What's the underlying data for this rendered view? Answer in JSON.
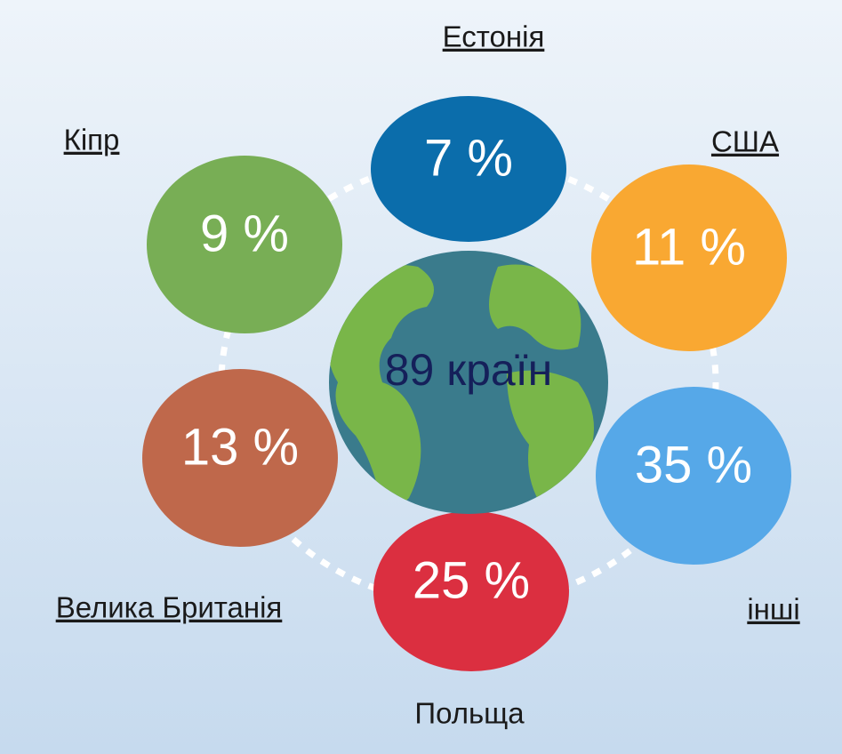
{
  "center": {
    "label": "89 країн"
  },
  "nodes": [
    {
      "label": "Естонія",
      "value": "7 %",
      "color": "#0b6dab"
    },
    {
      "label": "США",
      "value": "11 %",
      "color": "#f9a832"
    },
    {
      "label": "інші",
      "value": "35 %",
      "color": "#56a8e8"
    },
    {
      "label": "Польща",
      "value": "25 %",
      "color": "#db2f40"
    },
    {
      "label": "Велика Британія",
      "value": "13 %",
      "color": "#bf684b"
    },
    {
      "label": "Кіпр",
      "value": "9 %",
      "color": "#78ae55"
    }
  ]
}
